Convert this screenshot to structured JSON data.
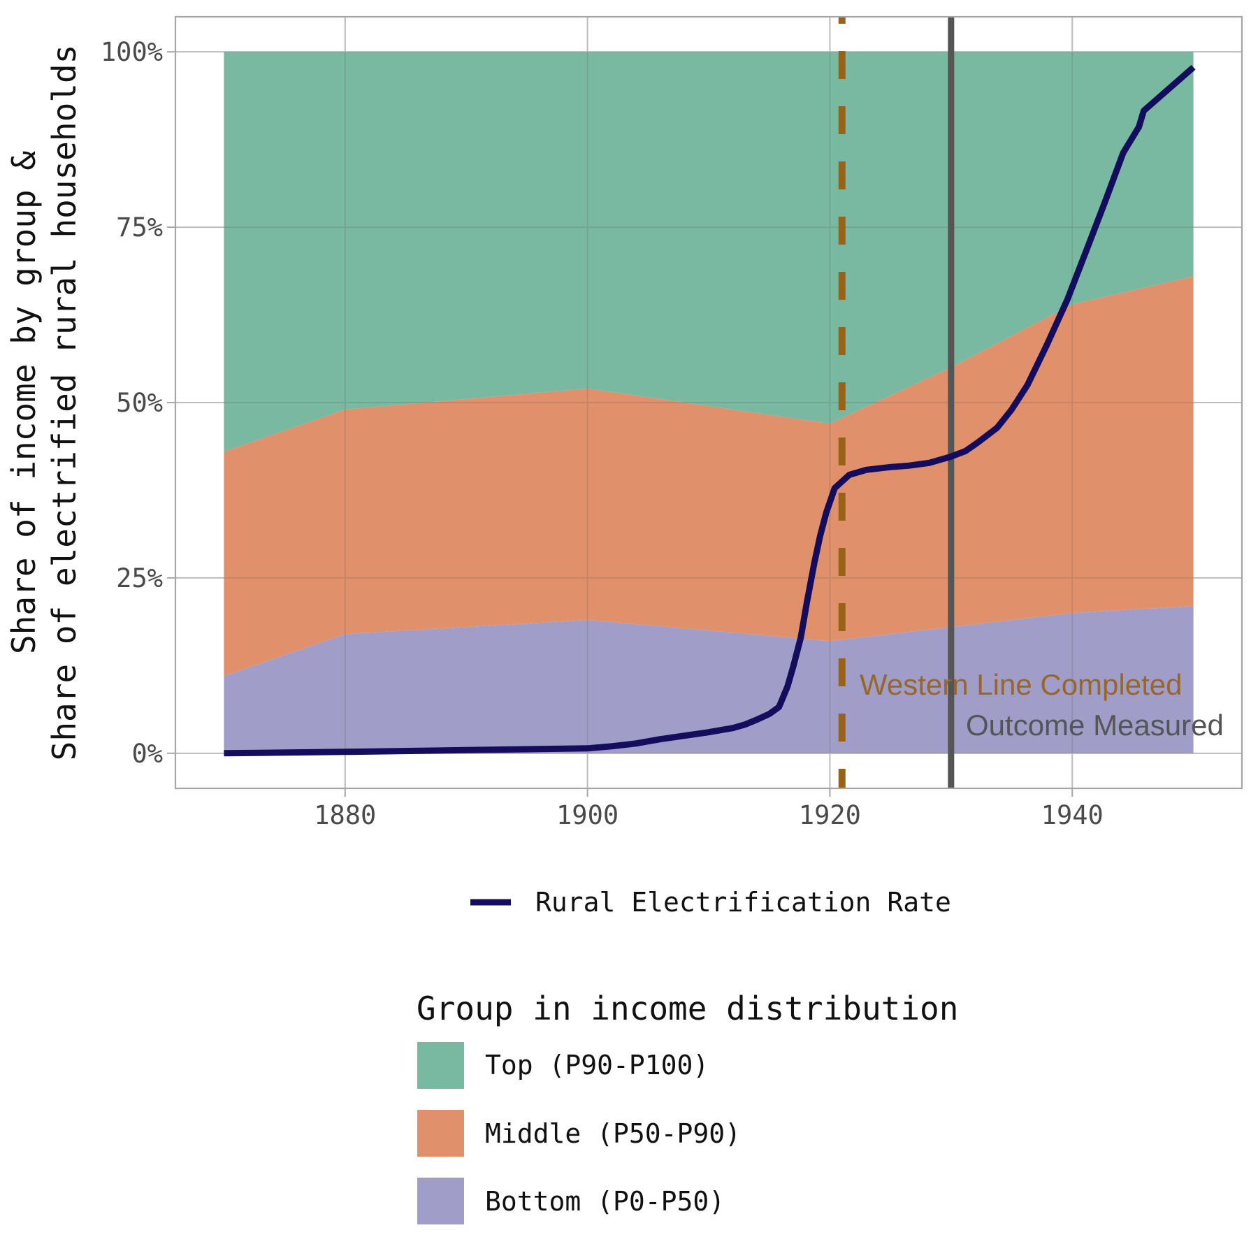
{
  "chart_data": {
    "type": "area",
    "stacked": true,
    "title": "",
    "xlabel": "",
    "ylabel_lines": [
      "Share of income by group &",
      "Share of electrified rural households"
    ],
    "x_ticks": [
      1880,
      1900,
      1920,
      1940
    ],
    "x_tick_labels": [
      "1880",
      "1900",
      "1920",
      "1940"
    ],
    "y_ticks": [
      0,
      25,
      50,
      75,
      100
    ],
    "y_tick_labels": [
      "0%",
      "25%",
      "50%",
      "75%",
      "100%"
    ],
    "xlim": [
      1866,
      1954
    ],
    "ylim": [
      -5,
      105
    ],
    "grid": true,
    "x": [
      1870,
      1880,
      1900,
      1920,
      1930,
      1940,
      1950
    ],
    "series": [
      {
        "name": "Bottom (P0-P50)",
        "color": "#a09dc8",
        "values": [
          11,
          17,
          19,
          16,
          18,
          20,
          21
        ]
      },
      {
        "name": "Middle (P50-P90)",
        "color": "#e0916c",
        "values": [
          32,
          32,
          33,
          31,
          37,
          44,
          47
        ]
      },
      {
        "name": "Top (P90-P100)",
        "color": "#79b9a1",
        "values": [
          57,
          51,
          48,
          53,
          45,
          36,
          32
        ]
      }
    ],
    "line_series": {
      "name": "Rural Electrification Rate",
      "color": "#140c5c",
      "points": [
        [
          1870,
          0.0
        ],
        [
          1880,
          0.2
        ],
        [
          1890,
          0.45
        ],
        [
          1900,
          0.7
        ],
        [
          1902,
          1.0
        ],
        [
          1904,
          1.4
        ],
        [
          1906,
          2.0
        ],
        [
          1908,
          2.5
        ],
        [
          1910,
          3.0
        ],
        [
          1912,
          3.6
        ],
        [
          1913,
          4.1
        ],
        [
          1914,
          4.8
        ],
        [
          1915,
          5.6
        ],
        [
          1915.8,
          6.6
        ],
        [
          1916.5,
          9.5
        ],
        [
          1917,
          12.5
        ],
        [
          1917.6,
          16.5
        ],
        [
          1918.1,
          21.5
        ],
        [
          1918.7,
          27
        ],
        [
          1919.2,
          31
        ],
        [
          1919.7,
          34.3
        ],
        [
          1920.4,
          37.8
        ],
        [
          1921.6,
          39.7
        ],
        [
          1923,
          40.4
        ],
        [
          1925,
          40.8
        ],
        [
          1926.5,
          41.0
        ],
        [
          1928.2,
          41.4
        ],
        [
          1930,
          42.3
        ],
        [
          1931.2,
          43.1
        ],
        [
          1932.2,
          44.3
        ],
        [
          1933.8,
          46.4
        ],
        [
          1935,
          49.0
        ],
        [
          1936.3,
          52.5
        ],
        [
          1937.9,
          58.2
        ],
        [
          1939.6,
          64.7
        ],
        [
          1941.1,
          71.4
        ],
        [
          1942.7,
          78.6
        ],
        [
          1944.2,
          85.6
        ],
        [
          1945.5,
          89.3
        ],
        [
          1945.9,
          91.6
        ],
        [
          1950,
          97.8
        ]
      ]
    },
    "reference_lines": [
      {
        "x": 1921,
        "style": "dashed",
        "color": "#986219",
        "label": "Western Line Completed",
        "label_color": "#99631c"
      },
      {
        "x": 1930,
        "style": "solid",
        "color": "#555555",
        "label": "Outcome Measured",
        "label_color": "#555555"
      }
    ],
    "legends": [
      {
        "title": "",
        "position": "bottom",
        "items": [
          "Rural Electrification Rate"
        ]
      },
      {
        "title": "Group in income distribution",
        "position": "bottom",
        "items": [
          "Top (P90-P100)",
          "Middle (P50-P90)",
          "Bottom (P0-P50)"
        ]
      }
    ]
  },
  "annotations": {
    "western": "Western Line Completed",
    "outcome": "Outcome Measured"
  },
  "legend": {
    "line_label": "Rural Electrification Rate",
    "group_title": "Group in income distribution",
    "groups": [
      {
        "label": "Top (P90-P100)",
        "color": "#79b9a1"
      },
      {
        "label": "Middle (P50-P90)",
        "color": "#e0916c"
      },
      {
        "label": "Bottom (P0-P50)",
        "color": "#a09dc8"
      }
    ]
  }
}
